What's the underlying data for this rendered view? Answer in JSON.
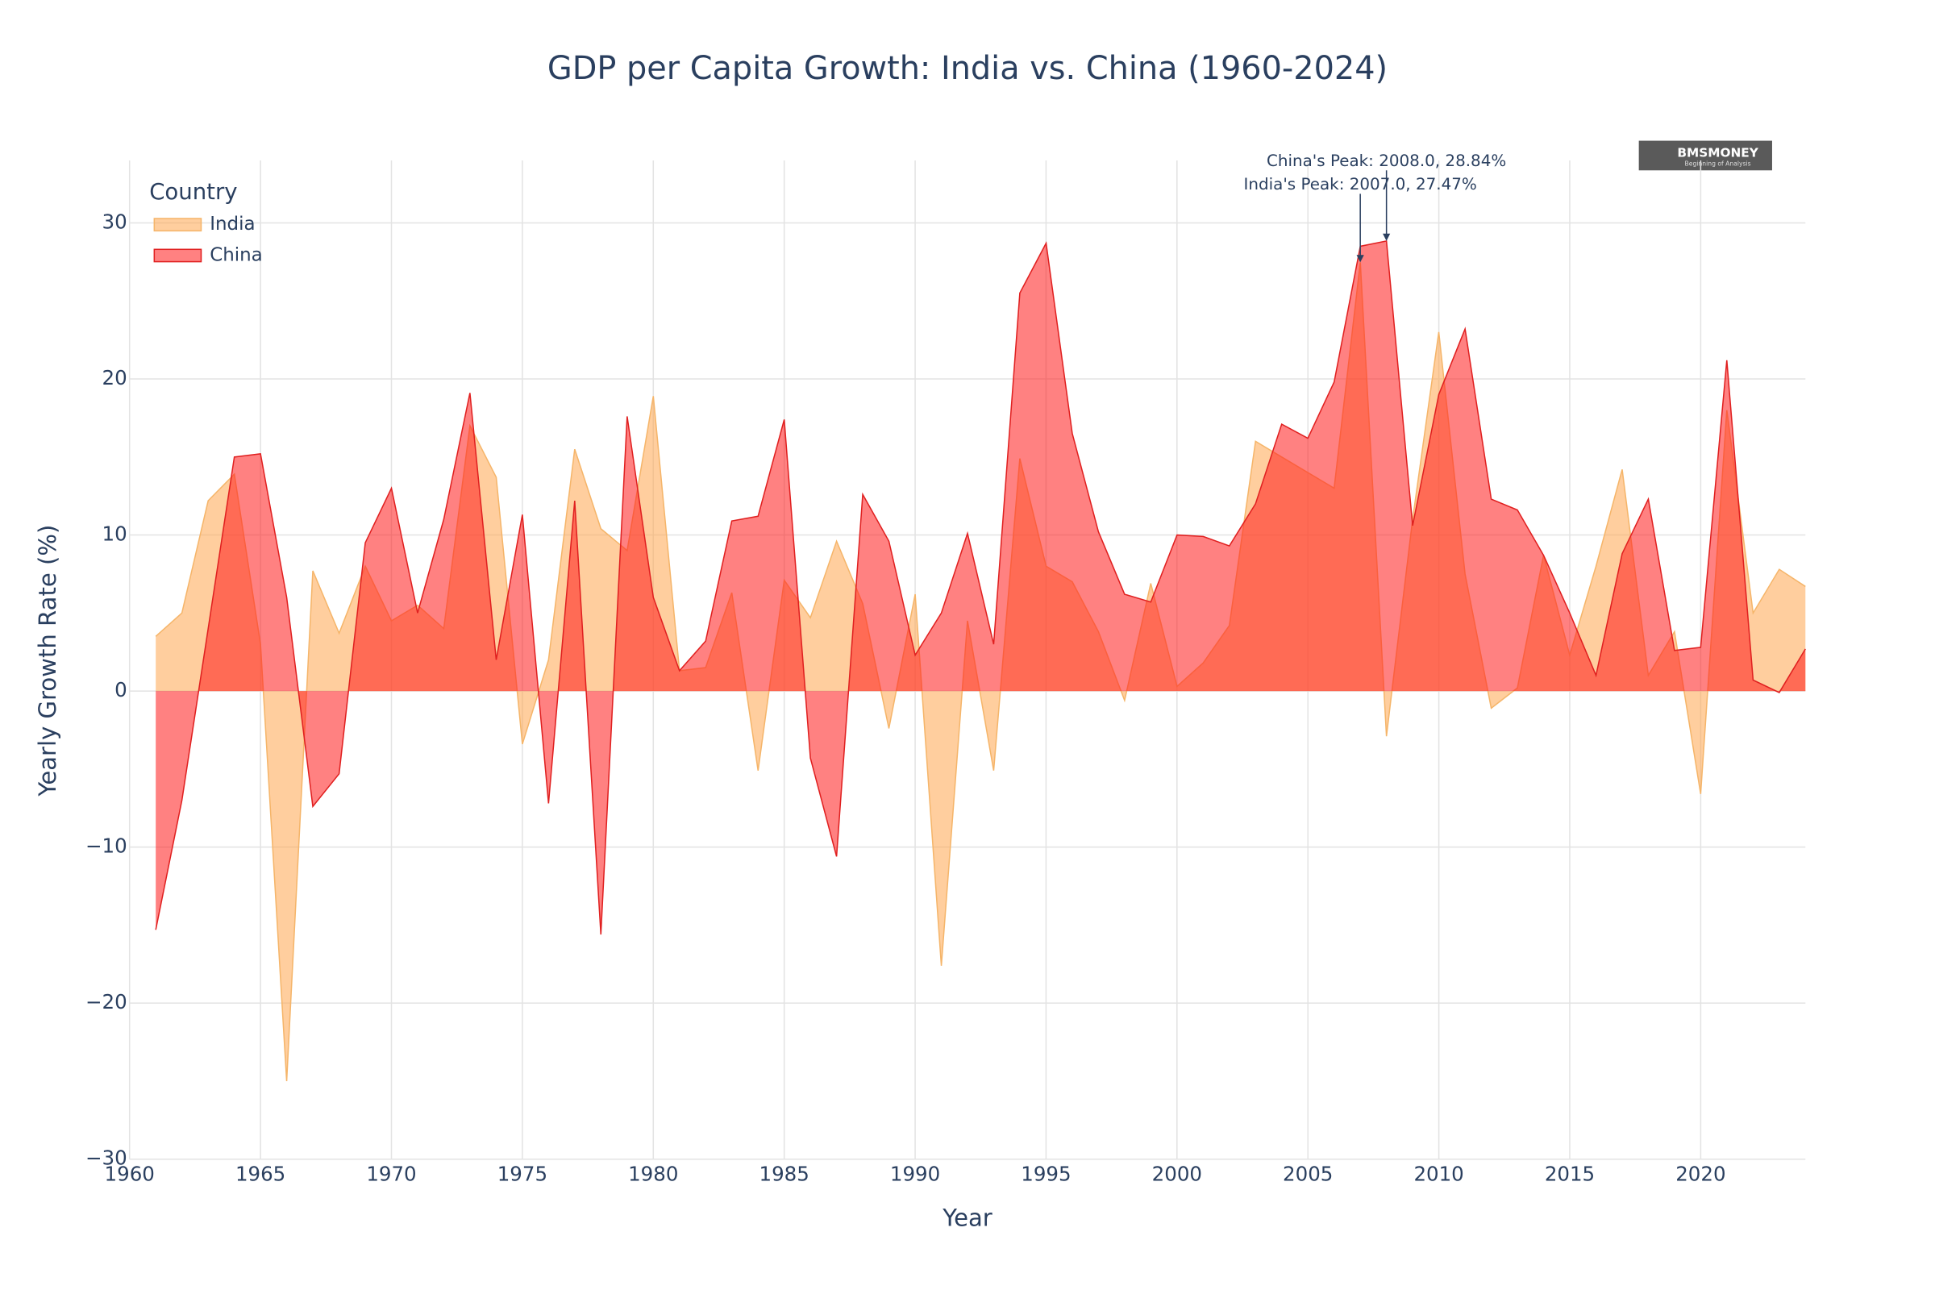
{
  "chart_data": {
    "type": "area",
    "title": "GDP per Capita Growth: India vs. China (1960-2024)",
    "x_label": "Year",
    "y_label": "Yearly Growth Rate (%)",
    "legend_title": "Country",
    "legend_position": "top-left",
    "grid": true,
    "xlim": [
      1960,
      2024
    ],
    "ylim": [
      -30,
      34
    ],
    "xticks": [
      1960,
      1965,
      1970,
      1975,
      1980,
      1985,
      1990,
      1995,
      2000,
      2005,
      2010,
      2015,
      2020
    ],
    "yticks": [
      {
        "value": -30,
        "label": "−30"
      },
      {
        "value": -20,
        "label": "−20"
      },
      {
        "value": -10,
        "label": "−10"
      },
      0,
      10,
      20,
      30
    ],
    "x": [
      1961,
      1962,
      1963,
      1964,
      1965,
      1966,
      1967,
      1968,
      1969,
      1970,
      1971,
      1972,
      1973,
      1974,
      1975,
      1976,
      1977,
      1978,
      1979,
      1980,
      1981,
      1982,
      1983,
      1984,
      1985,
      1986,
      1987,
      1988,
      1989,
      1990,
      1991,
      1992,
      1993,
      1994,
      1995,
      1996,
      1997,
      1998,
      1999,
      2000,
      2001,
      2002,
      2003,
      2004,
      2005,
      2006,
      2007,
      2008,
      2009,
      2010,
      2011,
      2012,
      2013,
      2014,
      2015,
      2016,
      2017,
      2018,
      2019,
      2020,
      2021,
      2022,
      2023,
      2024
    ],
    "series": [
      {
        "name": "India",
        "color": "#ffa54f",
        "line_color": "#f5b56a",
        "values": [
          3.5,
          5.0,
          12.2,
          13.9,
          3.0,
          -25.0,
          7.7,
          3.7,
          8.0,
          4.5,
          5.5,
          4.0,
          17.0,
          13.7,
          -3.4,
          2.0,
          15.5,
          10.4,
          9.0,
          18.9,
          1.3,
          1.5,
          6.3,
          -5.1,
          7.1,
          4.7,
          9.6,
          5.6,
          -2.4,
          6.2,
          -17.6,
          4.5,
          -5.1,
          14.9,
          8.0,
          7.0,
          3.8,
          -0.6,
          6.9,
          0.3,
          1.8,
          4.2,
          16.0,
          15.0,
          14.0,
          13.0,
          27.47,
          -2.9,
          11.0,
          23.0,
          7.5,
          -1.1,
          0.2,
          8.7,
          2.3,
          8.0,
          14.2,
          1.0,
          3.8,
          -6.6,
          18.0,
          5.0,
          7.8,
          6.7
        ]
      },
      {
        "name": "China",
        "color": "#ff1a1a",
        "line_color": "#e02020",
        "values": [
          -15.3,
          -7.0,
          4.0,
          15.0,
          15.2,
          6.0,
          -7.4,
          -5.3,
          9.5,
          13.0,
          5.0,
          11.0,
          19.1,
          2.0,
          11.3,
          -7.2,
          12.2,
          -15.6,
          17.6,
          6.0,
          1.3,
          3.2,
          10.9,
          11.2,
          17.4,
          -4.3,
          -10.6,
          12.6,
          9.6,
          2.3,
          5.0,
          10.1,
          3.0,
          25.5,
          28.7,
          16.5,
          10.2,
          6.2,
          5.7,
          10.0,
          9.9,
          9.3,
          12.0,
          17.1,
          16.2,
          19.8,
          28.5,
          28.84,
          10.6,
          19.0,
          23.2,
          12.3,
          11.6,
          8.7,
          5.0,
          1.0,
          8.8,
          12.3,
          2.6,
          2.8,
          21.2,
          0.7,
          -0.1,
          2.7
        ]
      }
    ],
    "annotations": [
      {
        "text": "China's Peak: 2008.0, 28.84%",
        "x": 2008,
        "y": 28.84,
        "series": 1
      },
      {
        "text": "India's Peak: 2007.0, 27.47%",
        "x": 2007,
        "y": 27.47,
        "series": 0
      }
    ],
    "logo": {
      "name": "BMSMONEY",
      "tagline": "Beginning of Analysis"
    }
  }
}
